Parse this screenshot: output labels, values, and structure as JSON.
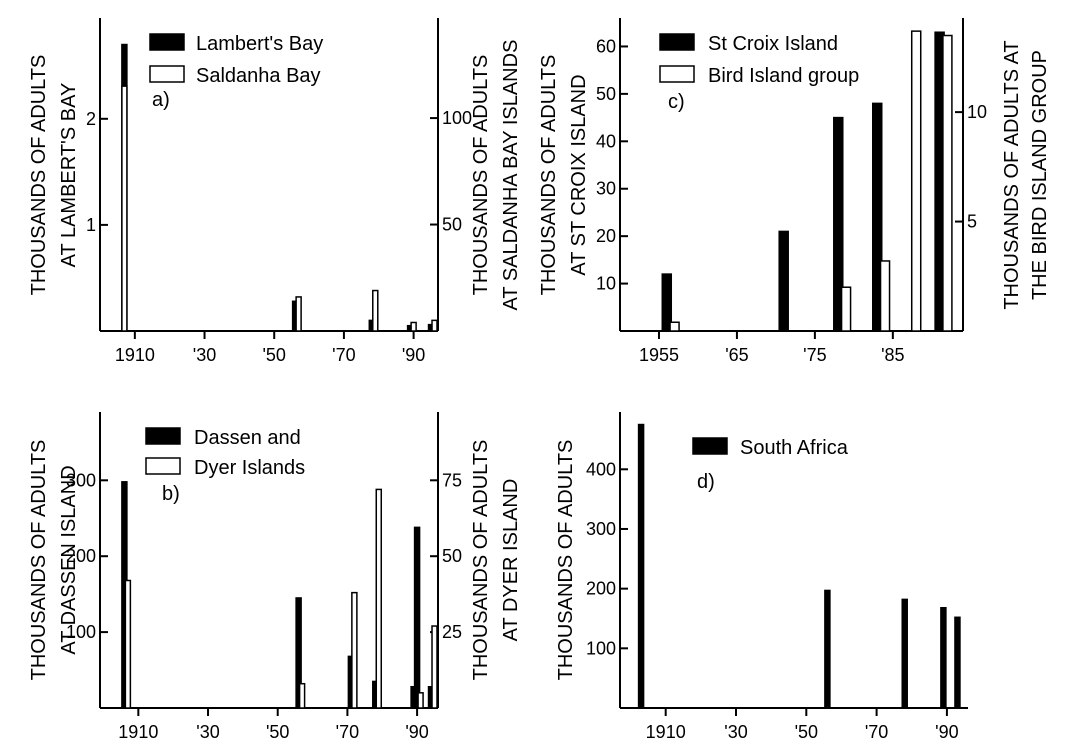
{
  "chart_data": [
    {
      "panel_label": "a)",
      "type": "bar",
      "x_ticks": [
        {
          "x": 1910,
          "label": "1910"
        },
        {
          "x": 1930,
          "label": "'30"
        },
        {
          "x": 1950,
          "label": "'50"
        },
        {
          "x": 1970,
          "label": "'70"
        },
        {
          "x": 1990,
          "label": "'90"
        }
      ],
      "xlim": [
        1900,
        1997
      ],
      "left_axis": {
        "label": [
          "THOUSANDS OF ADULTS",
          "AT LAMBERT'S BAY"
        ],
        "ylim": [
          0,
          2.95
        ],
        "ticks": [
          {
            "v": 1,
            "label": "1"
          },
          {
            "v": 2,
            "label": "2"
          }
        ]
      },
      "right_axis": {
        "label": [
          "THOUSANDS OF ADULTS",
          "AT SALDANHA BAY ISLANDS"
        ],
        "ylim": [
          0,
          147
        ],
        "ticks": [
          {
            "v": 50,
            "label": "50"
          },
          {
            "v": 100,
            "label": "100"
          }
        ]
      },
      "series": [
        {
          "name": "Lambert's Bay",
          "fill": "#000000",
          "axis": "left",
          "points": [
            [
              1907,
              2.7
            ],
            [
              1956,
              0.28
            ],
            [
              1978,
              0.1
            ],
            [
              1989,
              0.05
            ],
            [
              1995,
              0.06
            ]
          ]
        },
        {
          "name": "Saldanha Bay",
          "fill": "#ffffff",
          "axis": "right",
          "points": [
            [
              1907,
              115
            ],
            [
              1957,
              16
            ],
            [
              1979,
              19
            ],
            [
              1990,
              4
            ],
            [
              1996,
              5
            ]
          ]
        }
      ]
    },
    {
      "panel_label": "b)",
      "type": "bar",
      "x_ticks": [
        {
          "x": 1910,
          "label": "1910"
        },
        {
          "x": 1930,
          "label": "'30"
        },
        {
          "x": 1950,
          "label": "'50"
        },
        {
          "x": 1970,
          "label": "'70"
        },
        {
          "x": 1990,
          "label": "'90"
        }
      ],
      "xlim": [
        1899,
        1996
      ],
      "left_axis": {
        "label": [
          "THOUSANDS OF ADULTS",
          "AT DASSEN ISLAND"
        ],
        "ylim": [
          0,
          390
        ],
        "ticks": [
          {
            "v": 100,
            "label": "100"
          },
          {
            "v": 200,
            "label": "200"
          },
          {
            "v": 300,
            "label": "300"
          }
        ]
      },
      "right_axis": {
        "label": [
          "THOUSANDS OF ADULTS",
          "AT DYER ISLAND"
        ],
        "ylim": [
          0,
          97.5
        ],
        "ticks": [
          {
            "v": 25,
            "label": "25"
          },
          {
            "v": 50,
            "label": "50"
          },
          {
            "v": 75,
            "label": "75"
          }
        ]
      },
      "legend_lines": [
        "Dassen and",
        "Dyer Islands"
      ],
      "series": [
        {
          "name": "Dassen",
          "fill": "#000000",
          "axis": "left",
          "points": [
            [
              1906,
              298
            ],
            [
              1956,
              145
            ],
            [
              1971,
              68
            ],
            [
              1978,
              35
            ],
            [
              1989,
              28
            ],
            [
              1990,
              238
            ],
            [
              1994,
              28
            ]
          ]
        },
        {
          "name": "Dyer",
          "fill": "#ffffff",
          "axis": "right",
          "points": [
            [
              1907,
              42
            ],
            [
              1957,
              8
            ],
            [
              1972,
              38
            ],
            [
              1979,
              72
            ],
            [
              1991,
              5
            ],
            [
              1995,
              27
            ]
          ]
        }
      ]
    },
    {
      "panel_label": "c)",
      "type": "bar",
      "x_ticks": [
        {
          "x": 1955,
          "label": "1955"
        },
        {
          "x": 1965,
          "label": "'65"
        },
        {
          "x": 1975,
          "label": "'75"
        },
        {
          "x": 1985,
          "label": "'85"
        }
      ],
      "xlim": [
        1950,
        1994
      ],
      "left_axis": {
        "label": [
          "THOUSANDS OF ADULTS",
          "AT ST CROIX ISLAND"
        ],
        "ylim": [
          0,
          66
        ],
        "ticks": [
          {
            "v": 10,
            "label": "10"
          },
          {
            "v": 20,
            "label": "20"
          },
          {
            "v": 30,
            "label": "30"
          },
          {
            "v": 40,
            "label": "40"
          },
          {
            "v": 50,
            "label": "50"
          },
          {
            "v": 60,
            "label": "60"
          }
        ]
      },
      "right_axis": {
        "label": [
          "THOUSANDS OF ADULTS AT",
          "THE BIRD ISLAND GROUP"
        ],
        "ylim": [
          0,
          14.3
        ],
        "ticks": [
          {
            "v": 5,
            "label": "5"
          },
          {
            "v": 10,
            "label": "10"
          }
        ]
      },
      "series": [
        {
          "name": "St Croix Island",
          "fill": "#000000",
          "axis": "left",
          "points": [
            [
              1956,
              12
            ],
            [
              1971,
              21
            ],
            [
              1978,
              45
            ],
            [
              1983,
              48
            ],
            [
              1991,
              63
            ]
          ]
        },
        {
          "name": "Bird Island group",
          "fill": "#ffffff",
          "axis": "right",
          "points": [
            [
              1957,
              0.4
            ],
            [
              1979,
              2.0
            ],
            [
              1984,
              3.2
            ],
            [
              1988,
              13.7
            ],
            [
              1992,
              13.5
            ]
          ]
        }
      ]
    },
    {
      "panel_label": "d)",
      "type": "bar",
      "x_ticks": [
        {
          "x": 1910,
          "label": "1910"
        },
        {
          "x": 1930,
          "label": "'30"
        },
        {
          "x": 1950,
          "label": "'50"
        },
        {
          "x": 1970,
          "label": "'70"
        },
        {
          "x": 1990,
          "label": "'90"
        }
      ],
      "xlim": [
        1897,
        1996
      ],
      "left_axis": {
        "label": [
          "THOUSANDS OF ADULTS"
        ],
        "ylim": [
          0,
          496
        ],
        "ticks": [
          {
            "v": 100,
            "label": "100"
          },
          {
            "v": 200,
            "label": "200"
          },
          {
            "v": 300,
            "label": "300"
          },
          {
            "v": 400,
            "label": "400"
          }
        ]
      },
      "series": [
        {
          "name": "South Africa",
          "fill": "#000000",
          "axis": "left",
          "points": [
            [
              1903,
              475
            ],
            [
              1956,
              197
            ],
            [
              1978,
              182
            ],
            [
              1989,
              168
            ],
            [
              1993,
              152
            ]
          ]
        }
      ]
    }
  ]
}
